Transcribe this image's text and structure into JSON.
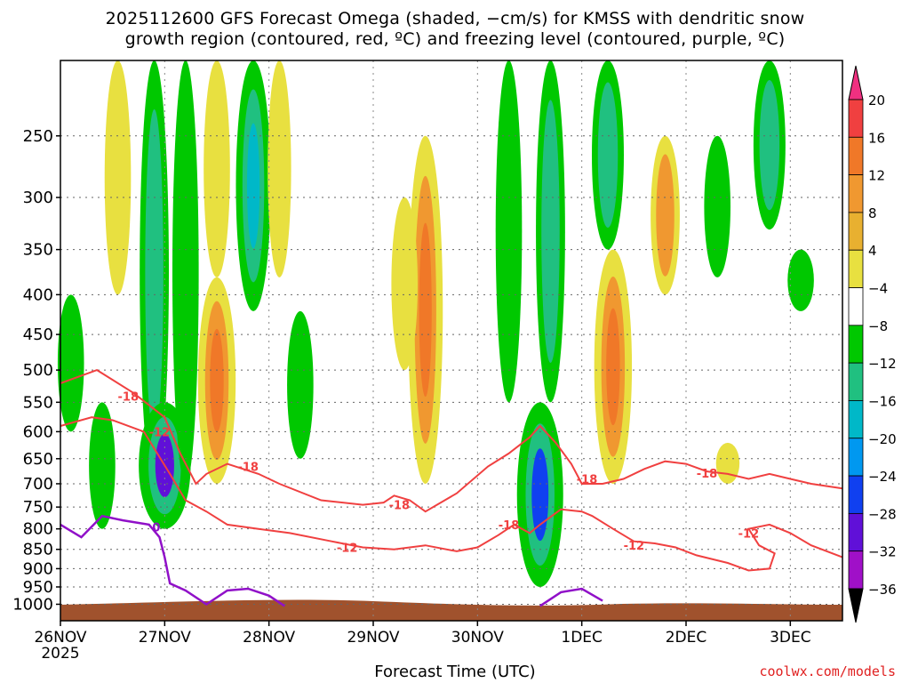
{
  "title_line1": "2025112600 GFS Forecast Omega (shaded, −cm/s) for KMSS with dendritic snow",
  "title_line2": "growth region (contoured, red, ºC) and freezing level (contoured, purple, ºC)",
  "credit": "coolwx.com/models",
  "chart_data": {
    "type": "heatmap",
    "xlabel": "Forecast Time (UTC)",
    "x_ticks": [
      "26NOV",
      "27NOV",
      "28NOV",
      "29NOV",
      "30NOV",
      "1DEC",
      "2DEC",
      "3DEC"
    ],
    "x_tick_sub": "2025",
    "x_range_days": [
      0,
      7.5
    ],
    "y_ticks": [
      250,
      300,
      350,
      400,
      450,
      500,
      550,
      600,
      650,
      700,
      750,
      800,
      850,
      900,
      950,
      1000
    ],
    "y_scale": "log pressure",
    "colorbar": {
      "labels": [
        "20",
        "16",
        "12",
        "8",
        "4",
        "−4",
        "−8",
        "−12",
        "−16",
        "−20",
        "−24",
        "−28",
        "−32",
        "−36"
      ],
      "colors": [
        "#f03080",
        "#f04040",
        "#f07828",
        "#f09830",
        "#e8b030",
        "#e8e040",
        "#ffffff",
        "#00c800",
        "#20c080",
        "#00b8c8",
        "#0098f0",
        "#1040f0",
        "#6010d8",
        "#a010c8",
        "#a8a8a8",
        "#000000"
      ]
    },
    "terrain_color": "#a0522d",
    "contours": [
      {
        "color": "#f04040",
        "labels": [
          "-18",
          "-12",
          "-18",
          "-18",
          "-18",
          "-12",
          "-12",
          "-18",
          "-18",
          "-12"
        ]
      },
      {
        "color": "#9010c8",
        "labels": [
          "0"
        ]
      }
    ],
    "omega_blobs": [
      {
        "t": 0.1,
        "p0": 400,
        "p1": 600,
        "v": -6
      },
      {
        "t": 0.4,
        "p0": 550,
        "p1": 800,
        "v": -6
      },
      {
        "t": 0.55,
        "p0": 200,
        "p1": 400,
        "v": 6
      },
      {
        "t": 0.9,
        "p0": 200,
        "p1": 700,
        "v": -8
      },
      {
        "t": 1.0,
        "p0": 550,
        "p1": 800,
        "v": -24
      },
      {
        "t": 1.2,
        "p0": 200,
        "p1": 700,
        "v": -6
      },
      {
        "t": 1.5,
        "p0": 380,
        "p1": 700,
        "v": 14
      },
      {
        "t": 1.5,
        "p0": 200,
        "p1": 380,
        "v": 6
      },
      {
        "t": 1.85,
        "p0": 200,
        "p1": 420,
        "v": -12
      },
      {
        "t": 2.1,
        "p0": 200,
        "p1": 380,
        "v": 4
      },
      {
        "t": 2.3,
        "p0": 420,
        "p1": 650,
        "v": -6
      },
      {
        "t": 3.5,
        "p0": 250,
        "p1": 700,
        "v": 12
      },
      {
        "t": 3.3,
        "p0": 300,
        "p1": 500,
        "v": 6
      },
      {
        "t": 4.6,
        "p0": 550,
        "p1": 950,
        "v": -20
      },
      {
        "t": 4.7,
        "p0": 200,
        "p1": 550,
        "v": -8
      },
      {
        "t": 4.3,
        "p0": 200,
        "p1": 550,
        "v": -6
      },
      {
        "t": 5.3,
        "p0": 350,
        "p1": 700,
        "v": 14
      },
      {
        "t": 5.25,
        "p0": 200,
        "p1": 350,
        "v": -10
      },
      {
        "t": 5.8,
        "p0": 250,
        "p1": 400,
        "v": 8
      },
      {
        "t": 6.3,
        "p0": 250,
        "p1": 380,
        "v": -6
      },
      {
        "t": 6.8,
        "p0": 200,
        "p1": 330,
        "v": -10
      },
      {
        "t": 7.1,
        "p0": 350,
        "p1": 420,
        "v": -6
      },
      {
        "t": 6.4,
        "p0": 620,
        "p1": 700,
        "v": 4
      }
    ]
  }
}
